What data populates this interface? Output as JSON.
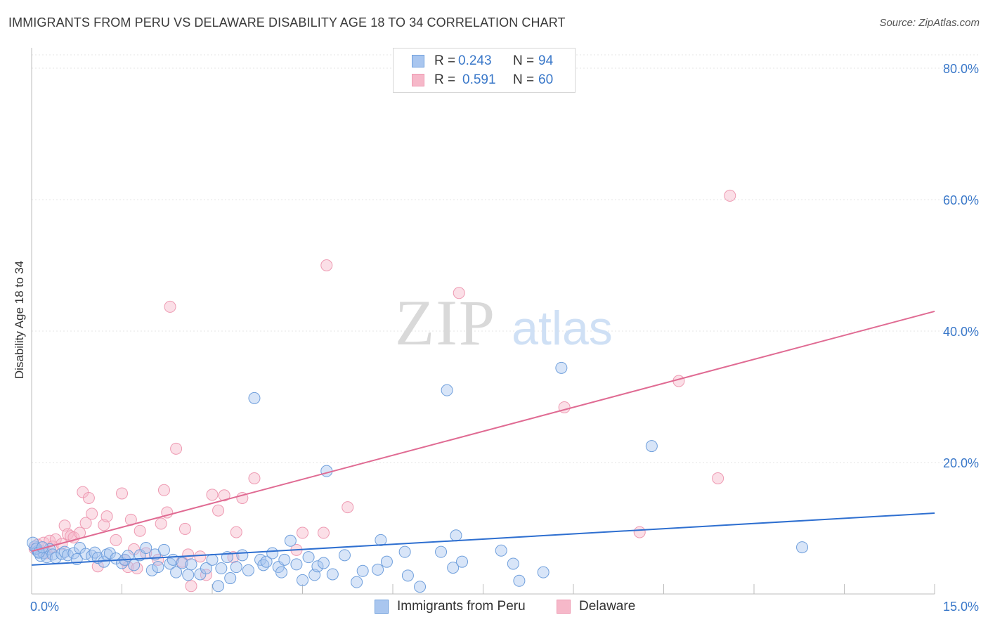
{
  "title": "IMMIGRANTS FROM PERU VS DELAWARE DISABILITY AGE 18 TO 34 CORRELATION CHART",
  "source": "Source: ZipAtlas.com",
  "watermark": {
    "zip": "ZIP",
    "atlas": "atlas"
  },
  "legend": [
    {
      "r_label": "R =",
      "r_value": "0.243",
      "n_label": "N =",
      "n_value": "94"
    },
    {
      "r_label": "R =",
      "r_value": "0.591",
      "n_label": "N =",
      "n_value": "60"
    }
  ],
  "chart_data": {
    "type": "scatter",
    "title": "IMMIGRANTS FROM PERU VS DELAWARE DISABILITY AGE 18 TO 34 CORRELATION CHART",
    "xlabel": "",
    "ylabel": "Disability Age 18 to 34",
    "xlim": [
      0,
      15
    ],
    "ylim": [
      0,
      80
    ],
    "x_tick_labels": [
      "0.0%",
      "15.0%"
    ],
    "y_ticks": [
      20,
      40,
      60,
      80
    ],
    "y_tick_labels": [
      "20.0%",
      "40.0%",
      "60.0%",
      "80.0%"
    ],
    "grid": true,
    "legend_position": "top-center",
    "colors": {
      "blue_fill": "#a9c6ef",
      "blue_stroke": "#6f9fdc",
      "blue_line": "#2e6fd0",
      "pink_fill": "#f6b8c9",
      "pink_stroke": "#ee9ab2",
      "pink_line": "#e06b93",
      "tick_label": "#3a78c9"
    },
    "series": [
      {
        "name": "Immigrants from Peru",
        "color": "#6f9fdc",
        "trend": {
          "x": [
            0,
            15
          ],
          "y": [
            4.4,
            12.3
          ]
        },
        "points": [
          [
            0.05,
            7.2
          ],
          [
            0.1,
            6.5
          ],
          [
            0.15,
            5.8
          ],
          [
            0.2,
            6.2
          ],
          [
            0.25,
            5.6
          ],
          [
            0.3,
            6.8
          ],
          [
            0.35,
            6.0
          ],
          [
            0.4,
            5.5
          ],
          [
            0.5,
            6.1
          ],
          [
            0.55,
            6.4
          ],
          [
            0.6,
            5.9
          ],
          [
            0.7,
            6.2
          ],
          [
            0.75,
            5.3
          ],
          [
            0.8,
            7.0
          ],
          [
            0.9,
            6.1
          ],
          [
            1.0,
            5.8
          ],
          [
            1.05,
            6.3
          ],
          [
            1.1,
            5.5
          ],
          [
            1.2,
            4.9
          ],
          [
            1.25,
            6.0
          ],
          [
            1.3,
            6.2
          ],
          [
            1.4,
            5.4
          ],
          [
            1.5,
            4.7
          ],
          [
            1.55,
            5.2
          ],
          [
            1.6,
            5.8
          ],
          [
            1.7,
            4.4
          ],
          [
            1.8,
            5.9
          ],
          [
            1.9,
            7.0
          ],
          [
            2.0,
            3.6
          ],
          [
            2.05,
            6.0
          ],
          [
            2.1,
            4.1
          ],
          [
            2.2,
            6.7
          ],
          [
            2.3,
            4.6
          ],
          [
            2.35,
            5.2
          ],
          [
            2.4,
            3.3
          ],
          [
            2.5,
            4.7
          ],
          [
            2.6,
            2.9
          ],
          [
            2.65,
            4.5
          ],
          [
            2.8,
            3.0
          ],
          [
            2.9,
            3.9
          ],
          [
            3.0,
            5.2
          ],
          [
            3.1,
            1.2
          ],
          [
            3.15,
            3.9
          ],
          [
            3.25,
            5.6
          ],
          [
            3.3,
            2.4
          ],
          [
            3.4,
            4.1
          ],
          [
            3.5,
            5.9
          ],
          [
            3.6,
            3.6
          ],
          [
            3.7,
            29.8
          ],
          [
            3.8,
            5.2
          ],
          [
            3.85,
            4.4
          ],
          [
            3.9,
            4.9
          ],
          [
            4.0,
            6.2
          ],
          [
            4.1,
            4.1
          ],
          [
            4.15,
            3.3
          ],
          [
            4.2,
            5.2
          ],
          [
            4.3,
            8.1
          ],
          [
            4.4,
            4.5
          ],
          [
            4.5,
            2.1
          ],
          [
            4.6,
            5.6
          ],
          [
            4.7,
            2.9
          ],
          [
            4.75,
            4.2
          ],
          [
            4.85,
            4.7
          ],
          [
            4.9,
            18.7
          ],
          [
            5.0,
            3.0
          ],
          [
            5.2,
            5.9
          ],
          [
            5.4,
            1.8
          ],
          [
            5.5,
            3.5
          ],
          [
            5.75,
            3.7
          ],
          [
            5.8,
            8.2
          ],
          [
            5.9,
            4.9
          ],
          [
            6.2,
            6.4
          ],
          [
            6.25,
            2.8
          ],
          [
            6.45,
            1.1
          ],
          [
            6.8,
            6.4
          ],
          [
            6.9,
            31.0
          ],
          [
            7.0,
            4.0
          ],
          [
            7.05,
            8.9
          ],
          [
            7.15,
            4.9
          ],
          [
            7.8,
            6.6
          ],
          [
            8.0,
            4.6
          ],
          [
            8.1,
            2.0
          ],
          [
            8.5,
            3.3
          ],
          [
            8.8,
            34.4
          ],
          [
            10.3,
            22.5
          ],
          [
            12.8,
            7.1
          ],
          [
            0.02,
            7.8
          ],
          [
            0.08,
            6.9
          ],
          [
            0.12,
            6.3
          ],
          [
            0.18,
            7.1
          ]
        ]
      },
      {
        "name": "Delaware",
        "color": "#ee9ab2",
        "trend": {
          "x": [
            0,
            15
          ],
          "y": [
            6.5,
            43.0
          ]
        },
        "points": [
          [
            0.05,
            6.9
          ],
          [
            0.1,
            7.5
          ],
          [
            0.15,
            6.6
          ],
          [
            0.2,
            7.8
          ],
          [
            0.25,
            6.2
          ],
          [
            0.3,
            8.1
          ],
          [
            0.35,
            7.2
          ],
          [
            0.4,
            8.3
          ],
          [
            0.5,
            7.6
          ],
          [
            0.55,
            10.4
          ],
          [
            0.6,
            9.1
          ],
          [
            0.65,
            8.8
          ],
          [
            0.7,
            8.6
          ],
          [
            0.8,
            9.3
          ],
          [
            0.85,
            15.5
          ],
          [
            0.9,
            10.8
          ],
          [
            0.95,
            14.6
          ],
          [
            1.0,
            12.2
          ],
          [
            1.1,
            4.2
          ],
          [
            1.2,
            10.5
          ],
          [
            1.25,
            11.8
          ],
          [
            1.4,
            8.2
          ],
          [
            1.5,
            15.3
          ],
          [
            1.55,
            5.1
          ],
          [
            1.6,
            4.1
          ],
          [
            1.65,
            11.3
          ],
          [
            1.7,
            6.8
          ],
          [
            1.75,
            3.9
          ],
          [
            1.8,
            9.6
          ],
          [
            1.9,
            6.2
          ],
          [
            2.1,
            5.2
          ],
          [
            2.15,
            10.7
          ],
          [
            2.2,
            15.8
          ],
          [
            2.25,
            12.4
          ],
          [
            2.3,
            43.7
          ],
          [
            2.4,
            22.1
          ],
          [
            2.5,
            4.9
          ],
          [
            2.55,
            9.9
          ],
          [
            2.6,
            6.0
          ],
          [
            2.65,
            1.2
          ],
          [
            2.8,
            5.7
          ],
          [
            2.9,
            2.9
          ],
          [
            3.0,
            15.1
          ],
          [
            3.1,
            12.7
          ],
          [
            3.2,
            15.0
          ],
          [
            3.35,
            5.6
          ],
          [
            3.4,
            9.4
          ],
          [
            3.5,
            14.6
          ],
          [
            3.7,
            17.6
          ],
          [
            4.4,
            6.7
          ],
          [
            4.5,
            9.3
          ],
          [
            4.85,
            9.3
          ],
          [
            4.9,
            50.0
          ],
          [
            5.25,
            13.2
          ],
          [
            7.1,
            45.8
          ],
          [
            8.85,
            28.4
          ],
          [
            10.1,
            9.4
          ],
          [
            10.75,
            32.4
          ],
          [
            11.4,
            17.6
          ],
          [
            11.6,
            60.6
          ]
        ]
      }
    ]
  },
  "bottom_legend": [
    {
      "label": "Immigrants from Peru"
    },
    {
      "label": "Delaware"
    }
  ]
}
